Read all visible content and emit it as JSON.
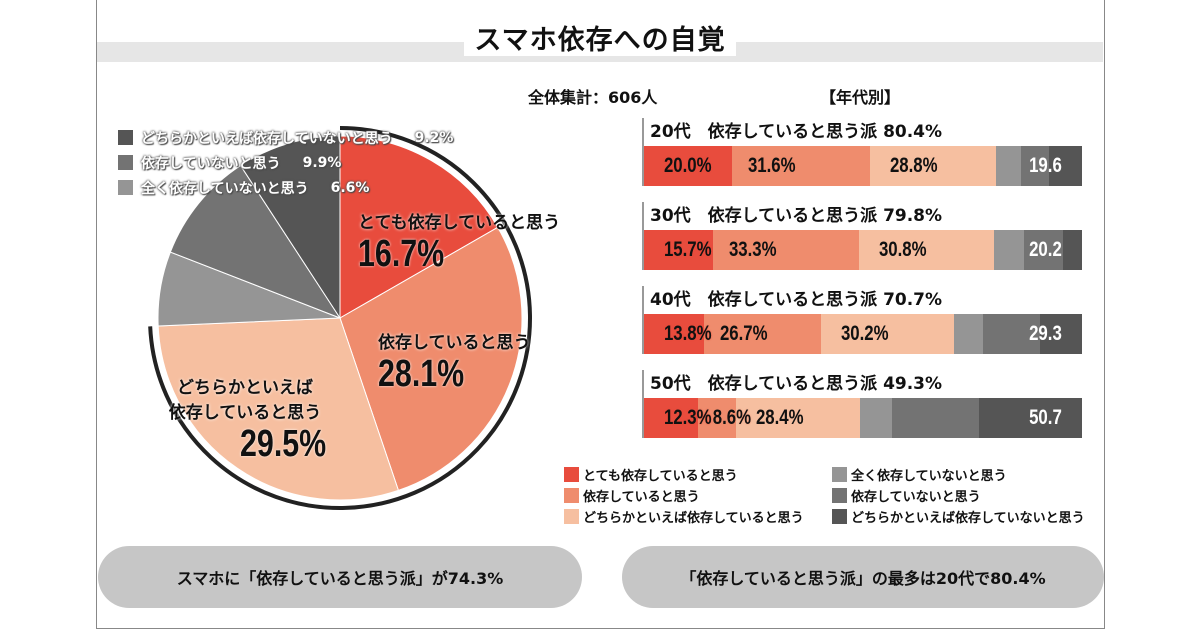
{
  "title": "スマホ依存への自覚",
  "total_label": "全体集計：606人",
  "by_age_label": "【年代別】",
  "colors": {
    "very": "#e84c3d",
    "yes": "#ef8c6d",
    "rather_yes": "#f6bfa0",
    "not_at_all": "#959595",
    "no": "#737373",
    "rather_no": "#555555"
  },
  "chart_data": [
    {
      "type": "pie",
      "title": "",
      "slices": [
        {
          "name": "とても依存していると思う",
          "value": 16.7,
          "label": "16.7%"
        },
        {
          "name": "依存していると思う",
          "value": 28.1,
          "label": "28.1%"
        },
        {
          "name": "どちらかといえば依存していると思う",
          "value": 29.5,
          "label": "29.5%"
        },
        {
          "name": "全く依存していないと思う",
          "value": 6.6,
          "label": "6.6%"
        },
        {
          "name": "依存していないと思う",
          "value": 9.9,
          "label": "9.9%"
        },
        {
          "name": "どちらかといえば依存していないと思う",
          "value": 9.2,
          "label": "9.2%"
        }
      ],
      "pie_labels": {
        "very_1": "とても依存していると思う",
        "yes_1": "依存していると思う",
        "rather_1": "どちらかといえば",
        "rather_2": "依存していると思う"
      }
    },
    {
      "type": "bar",
      "orientation": "horizontal",
      "stacked": true,
      "categories": [
        "20代",
        "30代",
        "40代",
        "50代"
      ],
      "headers": [
        "20代　依存していると思う派 80.4%",
        "30代　依存していると思う派 79.8%",
        "40代　依存していると思う派 70.7%",
        "50代　依存していると思う派 49.3%"
      ],
      "series": [
        {
          "name": "とても依存していると思う",
          "values": [
            20.0,
            15.7,
            13.8,
            12.3
          ],
          "labels": [
            "20.0%",
            "15.7%",
            "13.8%",
            "12.3%"
          ]
        },
        {
          "name": "依存していると思う",
          "values": [
            31.6,
            33.3,
            26.7,
            8.6
          ],
          "labels": [
            "31.6%",
            "33.3%",
            "26.7%",
            "8.6%"
          ]
        },
        {
          "name": "どちらかといえば依存していると思う",
          "values": [
            28.8,
            30.8,
            30.2,
            28.4
          ],
          "labels": [
            "28.8%",
            "30.8%",
            "30.2%",
            "28.4%"
          ]
        },
        {
          "name": "全く依存していないと思う",
          "values": [
            5.7,
            6.9,
            6.8,
            7.4
          ]
        },
        {
          "name": "依存していないと思う",
          "values": [
            6.4,
            9.0,
            13.0,
            19.9
          ]
        },
        {
          "name": "どちらかといえば依存していないと思う",
          "values": [
            7.5,
            4.3,
            9.5,
            23.4
          ]
        }
      ],
      "rest_labels": [
        "19.6",
        "20.2",
        "29.3",
        "50.7"
      ],
      "xlim": [
        0,
        100
      ]
    }
  ],
  "legend": [
    "とても依存していると思う",
    "依存していると思う",
    "どちらかといえば依存していると思う",
    "全く依存していないと思う",
    "依存していないと思う",
    "どちらかといえば依存していないと思う"
  ],
  "summary": [
    "スマホに「依存していると思う派」が74.3%",
    "「依存していると思う派」の最多は20代で80.4%"
  ]
}
